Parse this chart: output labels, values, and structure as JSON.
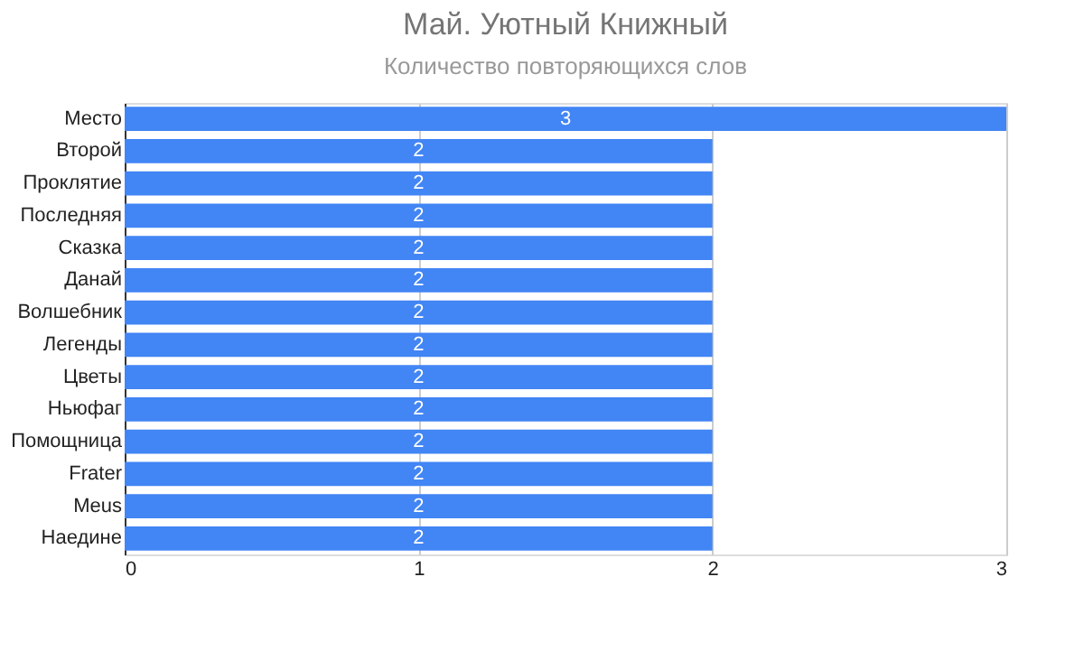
{
  "chart_data": {
    "type": "bar",
    "orientation": "horizontal",
    "title": "Май. Уютный Книжный",
    "subtitle": "Количество повторяющихся слов",
    "categories": [
      "Место",
      "Второй",
      "Проклятие",
      "Последняя",
      "Сказка",
      "Данай",
      "Волшебник",
      "Легенды",
      "Цветы",
      "Ньюфаг",
      "Помощница",
      "Frater",
      "Meus",
      "Наедине"
    ],
    "values": [
      3,
      2,
      2,
      2,
      2,
      2,
      2,
      2,
      2,
      2,
      2,
      2,
      2,
      2
    ],
    "color": "#4285f4",
    "xlim": [
      0,
      3
    ],
    "xticks": [
      0,
      1,
      2,
      3
    ],
    "grid": "x",
    "data_labels": true
  }
}
